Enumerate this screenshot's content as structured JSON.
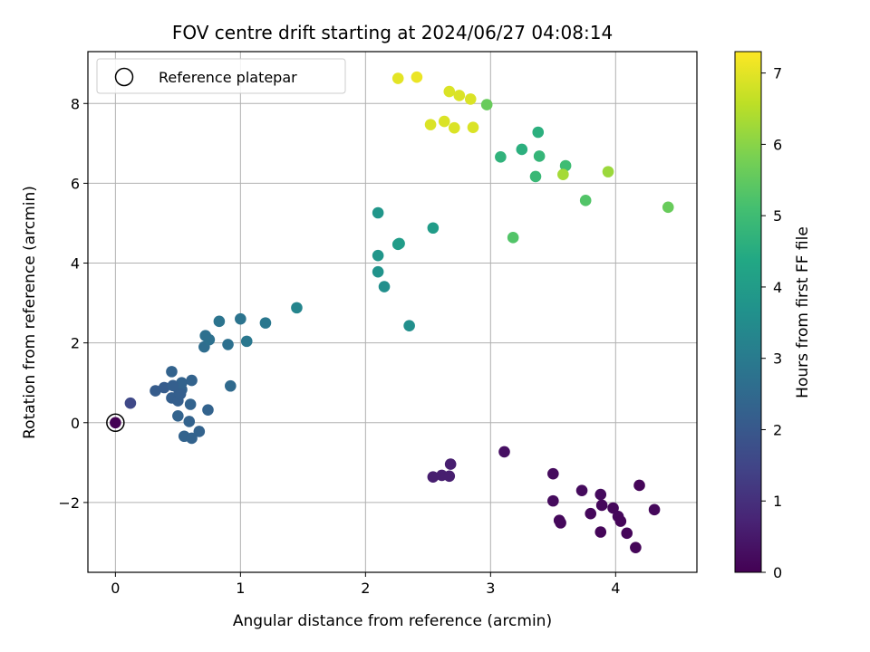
{
  "chart_data": {
    "type": "scatter",
    "title": "FOV centre drift starting at 2024/06/27 04:08:14",
    "xlabel": "Angular distance from reference (arcmin)",
    "ylabel": "Rotation from reference (arcmin)",
    "xlim": [
      -0.22,
      4.65
    ],
    "ylim": [
      -3.75,
      9.3
    ],
    "xticks": [
      0,
      1,
      2,
      3,
      4
    ],
    "yticks": [
      -2,
      0,
      2,
      4,
      6,
      8
    ],
    "grid": true,
    "legend": {
      "placement": "upper-left",
      "entries": [
        "Reference platepar"
      ]
    },
    "colorbar": {
      "label": "Hours from first FF file",
      "range": [
        0,
        7.3
      ],
      "ticks": [
        0,
        1,
        2,
        3,
        4,
        5,
        6,
        7
      ],
      "colormap": "viridis"
    },
    "reference_point": {
      "x": 0,
      "y": 0,
      "label": "Reference platepar"
    },
    "points": [
      {
        "x": 0.0,
        "y": 0.0,
        "c": 0.0
      },
      {
        "x": 3.11,
        "y": -0.73,
        "c": 0.3
      },
      {
        "x": 4.19,
        "y": -1.57,
        "c": 0.1
      },
      {
        "x": 3.5,
        "y": -1.28,
        "c": 0.2
      },
      {
        "x": 3.73,
        "y": -1.7,
        "c": 0.2
      },
      {
        "x": 3.88,
        "y": -1.8,
        "c": 0.2
      },
      {
        "x": 3.5,
        "y": -1.96,
        "c": 0.2
      },
      {
        "x": 3.89,
        "y": -2.07,
        "c": 0.15
      },
      {
        "x": 3.98,
        "y": -2.14,
        "c": 0.15
      },
      {
        "x": 4.31,
        "y": -2.18,
        "c": 0.15
      },
      {
        "x": 3.8,
        "y": -2.28,
        "c": 0.15
      },
      {
        "x": 4.02,
        "y": -2.35,
        "c": 0.15
      },
      {
        "x": 4.04,
        "y": -2.47,
        "c": 0.1
      },
      {
        "x": 3.55,
        "y": -2.45,
        "c": 0.15
      },
      {
        "x": 3.56,
        "y": -2.51,
        "c": 0.15
      },
      {
        "x": 3.88,
        "y": -2.74,
        "c": 0.1
      },
      {
        "x": 4.09,
        "y": -2.77,
        "c": 0.1
      },
      {
        "x": 4.16,
        "y": -3.13,
        "c": 0.1
      },
      {
        "x": 2.68,
        "y": -1.04,
        "c": 0.6
      },
      {
        "x": 2.54,
        "y": -1.36,
        "c": 0.6
      },
      {
        "x": 2.61,
        "y": -1.32,
        "c": 0.6
      },
      {
        "x": 2.67,
        "y": -1.34,
        "c": 0.6
      },
      {
        "x": 0.12,
        "y": 0.49,
        "c": 1.6
      },
      {
        "x": 0.32,
        "y": 0.8,
        "c": 2.1
      },
      {
        "x": 0.39,
        "y": 0.88,
        "c": 2.1
      },
      {
        "x": 0.45,
        "y": 0.62,
        "c": 2.2
      },
      {
        "x": 0.5,
        "y": 0.55,
        "c": 2.2
      },
      {
        "x": 0.51,
        "y": 0.78,
        "c": 2.2
      },
      {
        "x": 0.53,
        "y": 0.83,
        "c": 2.3
      },
      {
        "x": 0.53,
        "y": 1.0,
        "c": 2.3
      },
      {
        "x": 0.45,
        "y": 1.28,
        "c": 2.3
      },
      {
        "x": 0.61,
        "y": 1.06,
        "c": 2.3
      },
      {
        "x": 0.46,
        "y": 0.93,
        "c": 2.2
      },
      {
        "x": 0.52,
        "y": 0.72,
        "c": 2.2
      },
      {
        "x": 0.6,
        "y": 0.46,
        "c": 2.3
      },
      {
        "x": 0.74,
        "y": 0.32,
        "c": 2.3
      },
      {
        "x": 0.5,
        "y": 0.17,
        "c": 2.3
      },
      {
        "x": 0.59,
        "y": 0.03,
        "c": 2.3
      },
      {
        "x": 0.67,
        "y": -0.22,
        "c": 2.3
      },
      {
        "x": 0.55,
        "y": -0.34,
        "c": 2.3
      },
      {
        "x": 0.61,
        "y": -0.39,
        "c": 2.3
      },
      {
        "x": 0.92,
        "y": 0.92,
        "c": 2.5
      },
      {
        "x": 0.71,
        "y": 1.9,
        "c": 2.6
      },
      {
        "x": 0.72,
        "y": 2.18,
        "c": 2.7
      },
      {
        "x": 0.75,
        "y": 2.08,
        "c": 2.7
      },
      {
        "x": 0.9,
        "y": 1.96,
        "c": 2.7
      },
      {
        "x": 0.83,
        "y": 2.54,
        "c": 2.8
      },
      {
        "x": 1.0,
        "y": 2.6,
        "c": 2.8
      },
      {
        "x": 1.05,
        "y": 2.04,
        "c": 2.9
      },
      {
        "x": 1.2,
        "y": 2.5,
        "c": 2.9
      },
      {
        "x": 1.45,
        "y": 2.88,
        "c": 3.3
      },
      {
        "x": 2.35,
        "y": 2.43,
        "c": 3.6
      },
      {
        "x": 2.15,
        "y": 3.41,
        "c": 3.6
      },
      {
        "x": 2.1,
        "y": 3.78,
        "c": 3.7
      },
      {
        "x": 2.1,
        "y": 4.19,
        "c": 3.8
      },
      {
        "x": 2.26,
        "y": 4.47,
        "c": 4.0
      },
      {
        "x": 2.27,
        "y": 4.49,
        "c": 4.0
      },
      {
        "x": 2.1,
        "y": 5.26,
        "c": 3.8
      },
      {
        "x": 2.54,
        "y": 4.88,
        "c": 4.0
      },
      {
        "x": 3.18,
        "y": 4.64,
        "c": 5.3
      },
      {
        "x": 3.08,
        "y": 6.66,
        "c": 4.7
      },
      {
        "x": 3.25,
        "y": 6.85,
        "c": 4.6
      },
      {
        "x": 3.38,
        "y": 7.28,
        "c": 4.6
      },
      {
        "x": 3.39,
        "y": 6.68,
        "c": 4.8
      },
      {
        "x": 3.36,
        "y": 6.17,
        "c": 4.9
      },
      {
        "x": 3.6,
        "y": 6.44,
        "c": 5.0
      },
      {
        "x": 3.76,
        "y": 5.57,
        "c": 5.3
      },
      {
        "x": 3.58,
        "y": 6.22,
        "c": 6.3
      },
      {
        "x": 3.94,
        "y": 6.29,
        "c": 6.2
      },
      {
        "x": 4.42,
        "y": 5.4,
        "c": 5.6
      },
      {
        "x": 2.97,
        "y": 7.97,
        "c": 5.6
      },
      {
        "x": 2.26,
        "y": 8.63,
        "c": 7.0
      },
      {
        "x": 2.41,
        "y": 8.66,
        "c": 7.1
      },
      {
        "x": 2.67,
        "y": 8.3,
        "c": 6.9
      },
      {
        "x": 2.75,
        "y": 8.2,
        "c": 6.9
      },
      {
        "x": 2.84,
        "y": 8.11,
        "c": 6.9
      },
      {
        "x": 2.52,
        "y": 7.47,
        "c": 6.9
      },
      {
        "x": 2.63,
        "y": 7.55,
        "c": 6.9
      },
      {
        "x": 2.71,
        "y": 7.39,
        "c": 6.9
      },
      {
        "x": 2.86,
        "y": 7.4,
        "c": 6.9
      }
    ]
  }
}
